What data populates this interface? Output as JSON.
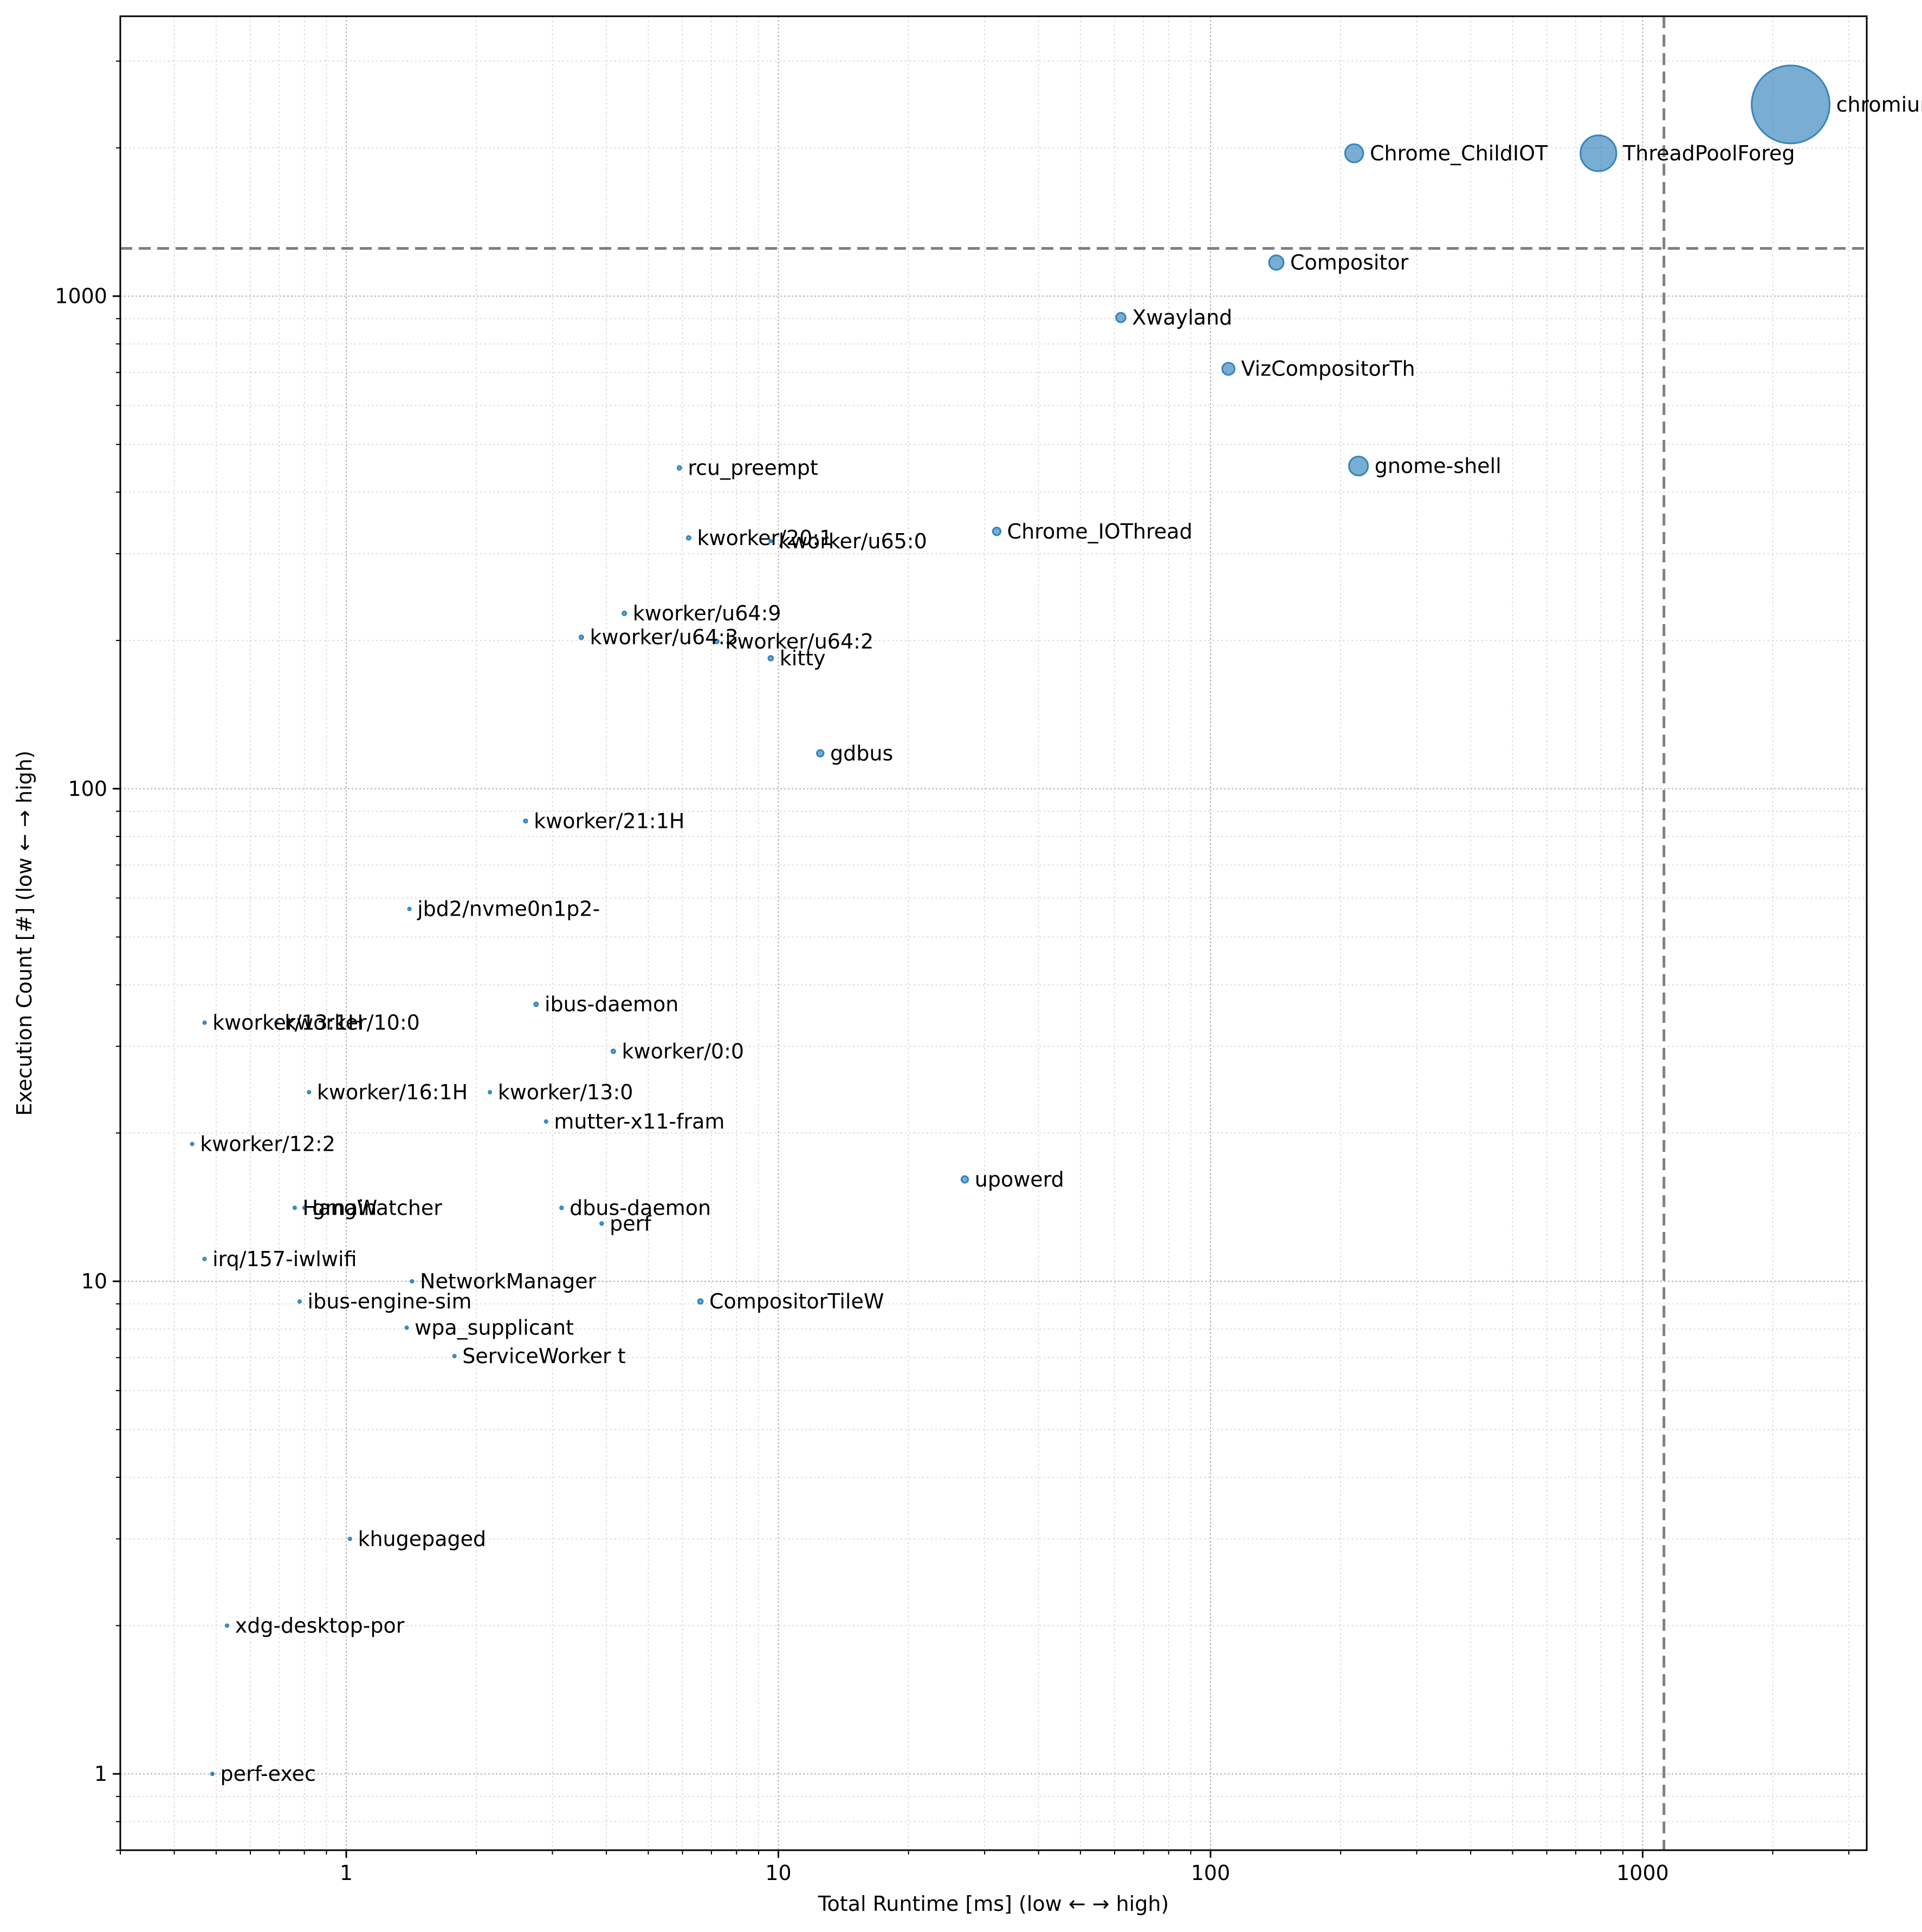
{
  "chart_data": {
    "type": "scatter",
    "title": "",
    "xlabel": "Total Runtime [ms] (low ← → high)",
    "ylabel": "Execution Count [#] (low ← → high)",
    "xscale": "log",
    "yscale": "log",
    "xlim": [
      0.3,
      3300
    ],
    "ylim": [
      0.7,
      3700
    ],
    "x_ticks": [
      1,
      10,
      100,
      1000
    ],
    "x_tick_labels": [
      "1",
      "10",
      "100",
      "1000"
    ],
    "y_ticks": [
      1,
      10,
      100,
      1000
    ],
    "y_tick_labels": [
      "1",
      "10",
      "100",
      "1000"
    ],
    "grid": true,
    "reference_lines": {
      "x": 1120,
      "y": 1250
    },
    "marker_color": "#1f77b4",
    "points": [
      {
        "label": "chromium",
        "x": 2200,
        "y": 2450,
        "size": 400
      },
      {
        "label": "Chrome_ChildIOT",
        "x": 215,
        "y": 1950,
        "size": 22
      },
      {
        "label": "ThreadPoolForeg",
        "x": 790,
        "y": 1950,
        "size": 85
      },
      {
        "label": "Compositor",
        "x": 142,
        "y": 1170,
        "size": 14
      },
      {
        "label": "Xwayland",
        "x": 62,
        "y": 905,
        "size": 6
      },
      {
        "label": "VizCompositorTh",
        "x": 110,
        "y": 712,
        "size": 10
      },
      {
        "label": "gnome-shell",
        "x": 220,
        "y": 452,
        "size": 24
      },
      {
        "label": "rcu_preempt",
        "x": 5.9,
        "y": 448,
        "size": 1
      },
      {
        "label": "Chrome_IOThread",
        "x": 32,
        "y": 333,
        "size": 4
      },
      {
        "label": "kworker/20:1",
        "x": 6.2,
        "y": 323,
        "size": 1
      },
      {
        "label": "kworker/u65:0",
        "x": 9.6,
        "y": 318,
        "size": 0.4
      },
      {
        "label": "kworker/u64:9",
        "x": 4.4,
        "y": 227,
        "size": 1
      },
      {
        "label": "kworker/u64:3",
        "x": 3.5,
        "y": 203,
        "size": 1
      },
      {
        "label": "kworker/u64:2",
        "x": 7.2,
        "y": 199,
        "size": 1
      },
      {
        "label": "kitty",
        "x": 9.6,
        "y": 184,
        "size": 1.5
      },
      {
        "label": "gdbus",
        "x": 12.5,
        "y": 118,
        "size": 3
      },
      {
        "label": "kworker/21:1H",
        "x": 2.6,
        "y": 86,
        "size": 0.8
      },
      {
        "label": "jbd2/nvme0n1p2-",
        "x": 1.4,
        "y": 57,
        "size": 0.5
      },
      {
        "label": "ibus-daemon",
        "x": 2.75,
        "y": 36.5,
        "size": 1
      },
      {
        "label": "kworker/13:1H",
        "x": 0.47,
        "y": 33.5,
        "size": 0.3
      },
      {
        "label": "kworker/10:0",
        "x": 0.69,
        "y": 33.5,
        "size": 0.2
      },
      {
        "label": "kworker/0:0",
        "x": 4.15,
        "y": 29.3,
        "size": 1
      },
      {
        "label": "kworker/16:1H",
        "x": 0.82,
        "y": 24.2,
        "size": 0.3
      },
      {
        "label": "kworker/13:0",
        "x": 2.15,
        "y": 24.2,
        "size": 0.3
      },
      {
        "label": "mutter-x11-fram",
        "x": 2.9,
        "y": 21.1,
        "size": 0.5
      },
      {
        "label": "kworker/12:2",
        "x": 0.44,
        "y": 19,
        "size": 0.3
      },
      {
        "label": "upowerd",
        "x": 27,
        "y": 16.1,
        "size": 3
      },
      {
        "label": "HangWatcher",
        "x": 0.76,
        "y": 14.1,
        "size": 0.3
      },
      {
        "label": "gmain",
        "x": 0.8,
        "y": 14.1,
        "size": 0.2
      },
      {
        "label": "dbus-daemon",
        "x": 3.15,
        "y": 14.1,
        "size": 0.6
      },
      {
        "label": "perf",
        "x": 3.9,
        "y": 13.1,
        "size": 0.6
      },
      {
        "label": "irq/157-iwlwifi",
        "x": 0.47,
        "y": 11.1,
        "size": 0.3
      },
      {
        "label": "NetworkManager",
        "x": 1.42,
        "y": 10,
        "size": 0.4
      },
      {
        "label": "ibus-engine-sim",
        "x": 0.78,
        "y": 9.1,
        "size": 0.3
      },
      {
        "label": "CompositorTileW",
        "x": 6.6,
        "y": 9.1,
        "size": 1.5
      },
      {
        "label": "wpa_supplicant",
        "x": 1.38,
        "y": 8.05,
        "size": 0.3
      },
      {
        "label": "ServiceWorker t",
        "x": 1.78,
        "y": 7.05,
        "size": 0.5
      },
      {
        "label": "khugepaged",
        "x": 1.02,
        "y": 3.0,
        "size": 0.3
      },
      {
        "label": "xdg-desktop-por",
        "x": 0.53,
        "y": 2.0,
        "size": 0.3
      },
      {
        "label": "perf-exec",
        "x": 0.49,
        "y": 1.0,
        "size": 0.3
      }
    ]
  }
}
